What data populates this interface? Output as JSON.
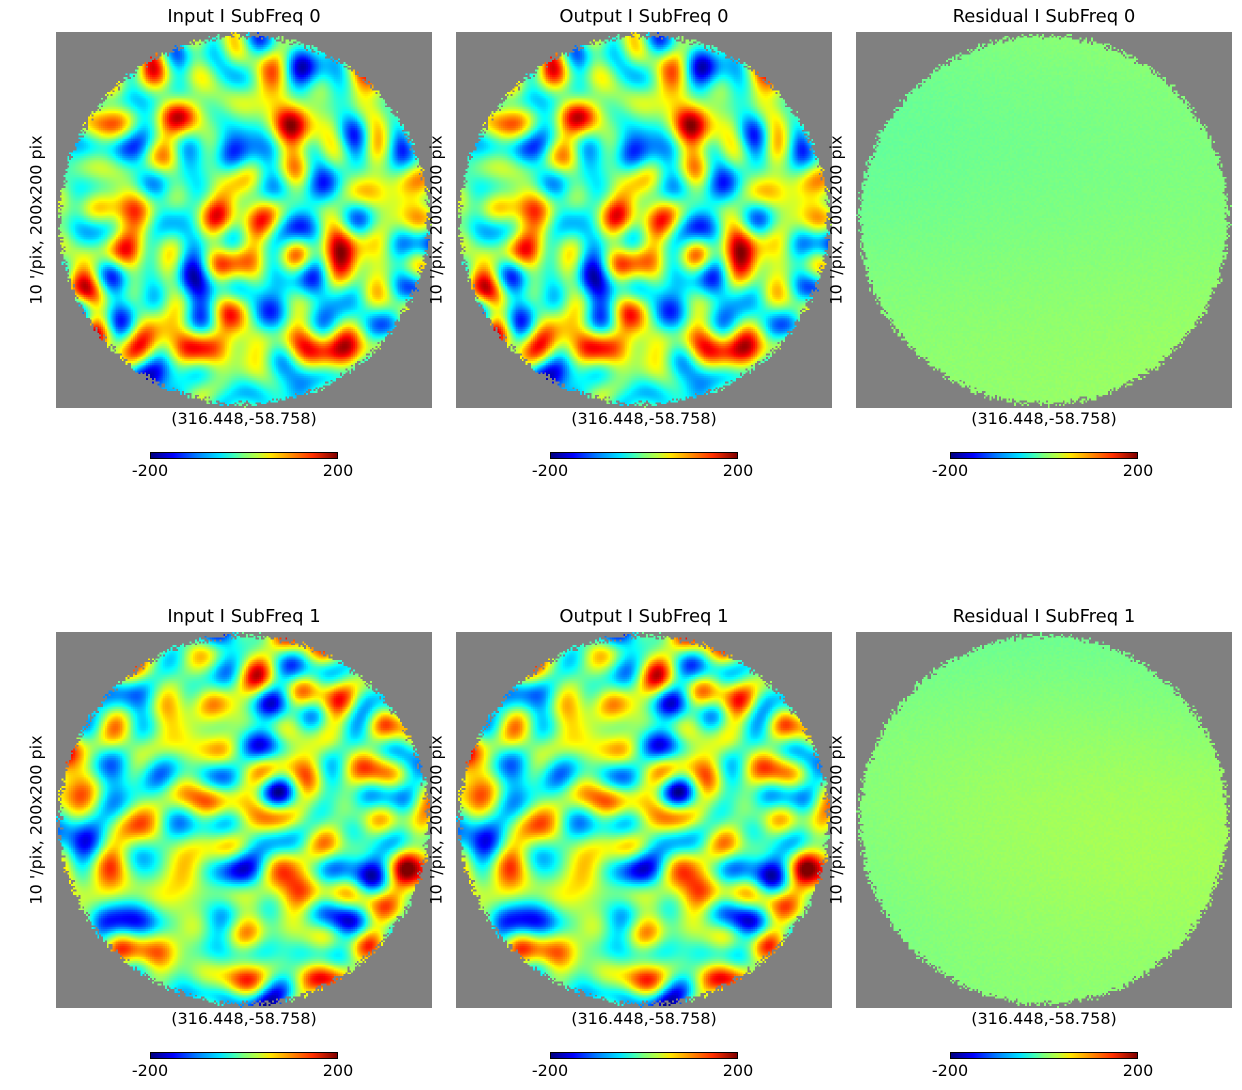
{
  "chart_data": [
    {
      "type": "heatmap",
      "title": "Input I SubFreq 0",
      "ylabel": "10 '/pix,   200x200 pix",
      "xlabel": "(316.448,-58.758)",
      "colorbar": {
        "min": "-200",
        "max": "200",
        "colormap": "jet"
      },
      "variant": "signal",
      "seed": 1
    },
    {
      "type": "heatmap",
      "title": "Output I SubFreq 0",
      "ylabel": "10 '/pix,   200x200 pix",
      "xlabel": "(316.448,-58.758)",
      "colorbar": {
        "min": "-200",
        "max": "200",
        "colormap": "jet"
      },
      "variant": "signal",
      "seed": 1
    },
    {
      "type": "heatmap",
      "title": "Residual I SubFreq 0",
      "ylabel": "10 '/pix,   200x200 pix",
      "xlabel": "(316.448,-58.758)",
      "colorbar": {
        "min": "-200",
        "max": "200",
        "colormap": "jet"
      },
      "variant": "residual",
      "seed": 3
    },
    {
      "type": "heatmap",
      "title": "Input I SubFreq 1",
      "ylabel": "10 '/pix,   200x200 pix",
      "xlabel": "(316.448,-58.758)",
      "colorbar": {
        "min": "-200",
        "max": "200",
        "colormap": "jet"
      },
      "variant": "signal",
      "seed": 2
    },
    {
      "type": "heatmap",
      "title": "Output I SubFreq 1",
      "ylabel": "10 '/pix,   200x200 pix",
      "xlabel": "(316.448,-58.758)",
      "colorbar": {
        "min": "-200",
        "max": "200",
        "colormap": "jet"
      },
      "variant": "signal",
      "seed": 2
    },
    {
      "type": "heatmap",
      "title": "Residual I SubFreq 1",
      "ylabel": "10 '/pix,   200x200 pix",
      "xlabel": "(316.448,-58.758)",
      "colorbar": {
        "min": "-200",
        "max": "200",
        "colormap": "jet"
      },
      "variant": "residual",
      "seed": 4
    }
  ],
  "colors": {
    "background_mask": "#808080"
  }
}
